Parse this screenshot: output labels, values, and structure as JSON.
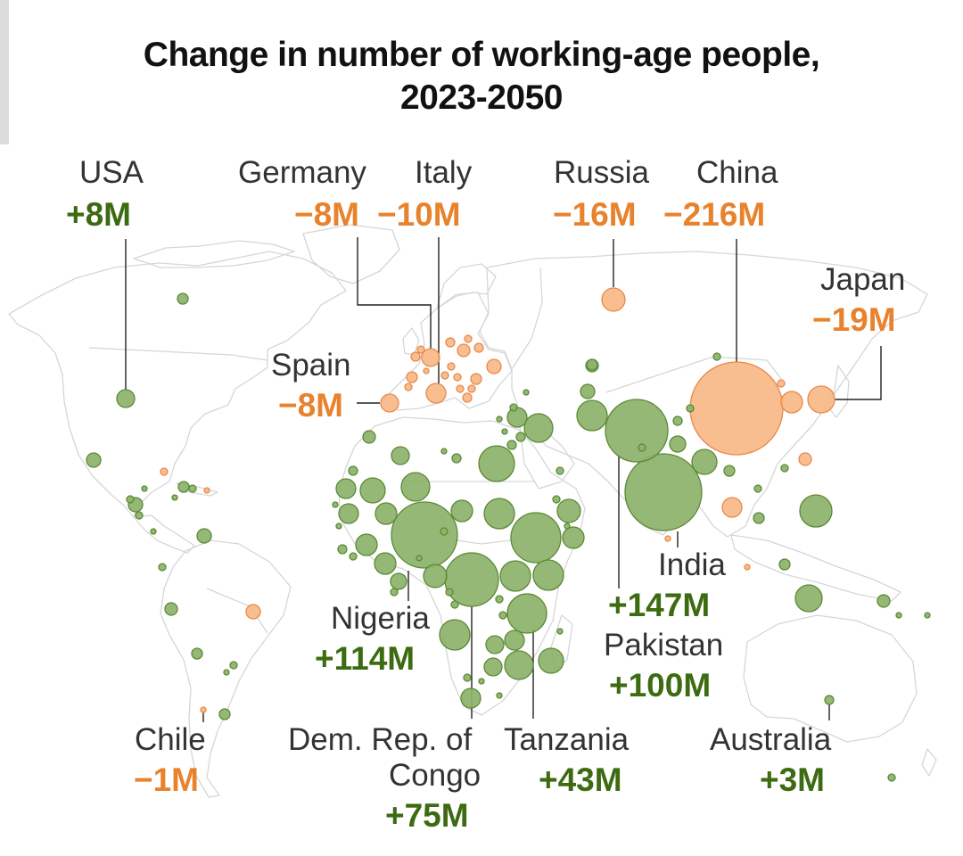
{
  "title_line1": "Change in number of working-age people,",
  "title_line2": "2023-2050",
  "colors": {
    "increase_fill": "#8db26a",
    "increase_stroke": "#5a8a35",
    "decrease_fill": "#f7b784",
    "decrease_stroke": "#e8894a",
    "increase_text": "#3d6b12",
    "decrease_text": "#e8822c",
    "basemap_line": "#d4d4d4",
    "leader_line": "#222222"
  },
  "legend_semantics": {
    "green_circles": "increase",
    "orange_circles": "decrease",
    "circle_area": "magnitude of change"
  },
  "countries": {
    "usa": {
      "name": "USA",
      "value": "+8M",
      "change_millions": 8
    },
    "germany": {
      "name": "Germany",
      "value": "−8M",
      "change_millions": -8
    },
    "italy": {
      "name": "Italy",
      "value": "−10M",
      "change_millions": -10
    },
    "russia": {
      "name": "Russia",
      "value": "−16M",
      "change_millions": -16
    },
    "china": {
      "name": "China",
      "value": "−216M",
      "change_millions": -216
    },
    "japan": {
      "name": "Japan",
      "value": "−19M",
      "change_millions": -19
    },
    "spain": {
      "name": "Spain",
      "value": "−8M",
      "change_millions": -8
    },
    "india": {
      "name": "India",
      "value": "+147M",
      "change_millions": 147
    },
    "pakistan": {
      "name": "Pakistan",
      "value": "+100M",
      "change_millions": 100
    },
    "nigeria": {
      "name": "Nigeria",
      "value": "+114M",
      "change_millions": 114
    },
    "chile": {
      "name": "Chile",
      "value": "−1M",
      "change_millions": -1
    },
    "drc": {
      "name_line1": "Dem. Rep. of",
      "name_line2": "Congo",
      "value": "+75M",
      "change_millions": 75
    },
    "tanzania": {
      "name": "Tanzania",
      "value": "+43M",
      "change_millions": 43
    },
    "australia": {
      "name": "Australia",
      "value": "+3M",
      "change_millions": 3
    }
  }
}
